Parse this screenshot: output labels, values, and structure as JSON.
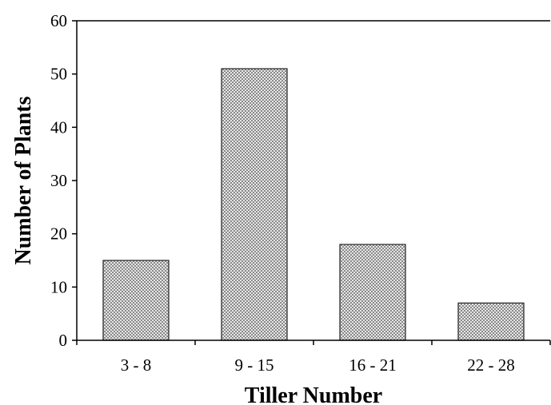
{
  "chart_data": {
    "type": "bar",
    "categories": [
      "3 - 8",
      "9 - 15",
      "16 - 21",
      "22 - 28"
    ],
    "values": [
      15,
      51,
      18,
      7
    ],
    "title": "",
    "xlabel": "Tiller Number",
    "ylabel": "Number of Plants",
    "ylim": [
      0,
      60
    ],
    "yticks": [
      0,
      10,
      20,
      30,
      40,
      50,
      60
    ],
    "grid": false,
    "bar_fill": "checkered",
    "colors": {
      "bar_dark": "#8a8a8a",
      "bar_light": "#e6e6e6",
      "axis": "#000000"
    }
  }
}
